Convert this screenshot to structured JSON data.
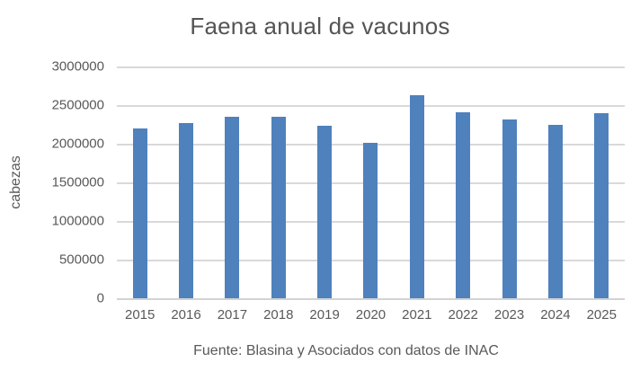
{
  "chart_data": {
    "type": "bar",
    "title": "Faena anual de vacunos",
    "ylabel": "cabezas",
    "xlabel": "",
    "footer": "Fuente: Blasina y Asociados con datos de INAC",
    "categories": [
      "2015",
      "2016",
      "2017",
      "2018",
      "2019",
      "2020",
      "2021",
      "2022",
      "2023",
      "2024",
      "2025"
    ],
    "values": [
      2200000,
      2270000,
      2350000,
      2350000,
      2230000,
      2010000,
      2630000,
      2410000,
      2310000,
      2250000,
      2400000
    ],
    "ylim": [
      0,
      3000000
    ],
    "ytick_step": 500000,
    "ytick_labels": [
      "0",
      "500000",
      "1000000",
      "1500000",
      "2000000",
      "2500000",
      "3000000"
    ],
    "grid": true,
    "legend_position": "none",
    "colors": {
      "bar": "#4F81BD",
      "gridline": "#D9D9D9",
      "axis_line": "#D3D3D3",
      "text": "#595959",
      "background": "#FFFFFF"
    }
  }
}
